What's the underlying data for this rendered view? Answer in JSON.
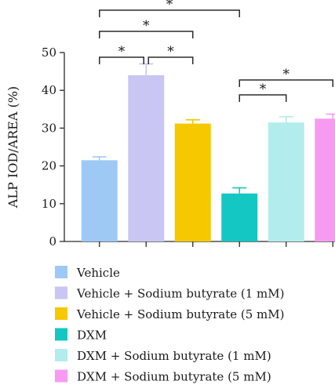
{
  "chart_data": {
    "type": "bar",
    "ylabel": "ALP IOD/AREA (%)",
    "ylim": [
      0,
      50
    ],
    "yticks": [
      0,
      10,
      20,
      30,
      40,
      50
    ],
    "grid": false,
    "legend_position": "bottom",
    "series": [
      {
        "name": "Vehicle",
        "value": 21.5,
        "error": 0.9,
        "color": "#9ec9f5"
      },
      {
        "name": "Vehicle + Sodium butyrate (1 mM)",
        "value": 44.0,
        "error": 3.0,
        "color": "#c9c6f3"
      },
      {
        "name": "Vehicle + Sodium butyrate (5 mM)",
        "value": 31.2,
        "error": 1.0,
        "color": "#f5c800"
      },
      {
        "name": "DXM",
        "value": 12.7,
        "error": 1.5,
        "color": "#14c7c2"
      },
      {
        "name": "DXM + Sodium butyrate (1 mM)",
        "value": 31.5,
        "error": 1.5,
        "color": "#b3ecec"
      },
      {
        "name": "DXM + Sodium butyrate (5 mM)",
        "value": 32.5,
        "error": 1.2,
        "color": "#f69bf1"
      }
    ],
    "significance": [
      {
        "from": 0,
        "to": 1,
        "label": "*"
      },
      {
        "from": 1,
        "to": 2,
        "label": "*"
      },
      {
        "from": 0,
        "to": 2,
        "label": "*"
      },
      {
        "from": 0,
        "to": 3,
        "label": "*"
      },
      {
        "from": 3,
        "to": 4,
        "label": "*"
      },
      {
        "from": 3,
        "to": 5,
        "label": "*"
      }
    ]
  }
}
